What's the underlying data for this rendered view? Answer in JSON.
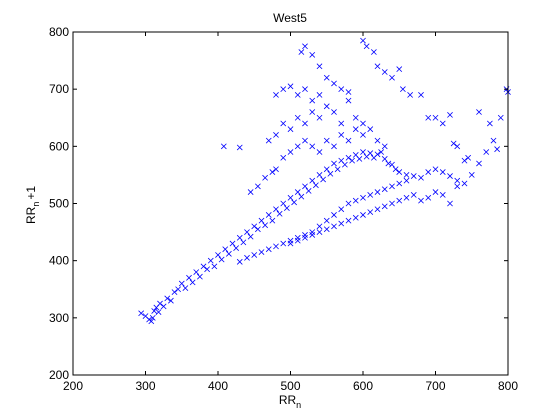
{
  "chart_data": {
    "type": "scatter",
    "title": "West5",
    "xlabel": {
      "main": "RR",
      "sub": "n",
      "suffix": ""
    },
    "ylabel": {
      "main": "RR",
      "sub": "n",
      "suffix": "+1"
    },
    "xlim": [
      200,
      800
    ],
    "ylim": [
      200,
      800
    ],
    "xticks": [
      200,
      300,
      400,
      500,
      600,
      700,
      800
    ],
    "yticks": [
      200,
      300,
      400,
      500,
      600,
      700,
      800
    ],
    "grid": false,
    "marker": "x",
    "marker_color": "#0000ff",
    "series": [
      {
        "values": [
          [
            294,
            308
          ],
          [
            300,
            303
          ],
          [
            305,
            297
          ],
          [
            308,
            294
          ],
          [
            310,
            300
          ],
          [
            312,
            312
          ],
          [
            315,
            318
          ],
          [
            318,
            310
          ],
          [
            320,
            325
          ],
          [
            325,
            320
          ],
          [
            330,
            334
          ],
          [
            335,
            330
          ],
          [
            340,
            345
          ],
          [
            345,
            350
          ],
          [
            350,
            360
          ],
          [
            355,
            352
          ],
          [
            360,
            370
          ],
          [
            365,
            362
          ],
          [
            370,
            380
          ],
          [
            375,
            372
          ],
          [
            380,
            390
          ],
          [
            385,
            385
          ],
          [
            390,
            400
          ],
          [
            395,
            390
          ],
          [
            400,
            410
          ],
          [
            405,
            402
          ],
          [
            410,
            420
          ],
          [
            415,
            412
          ],
          [
            420,
            430
          ],
          [
            425,
            422
          ],
          [
            430,
            440
          ],
          [
            435,
            432
          ],
          [
            440,
            450
          ],
          [
            445,
            442
          ],
          [
            450,
            460
          ],
          [
            455,
            455
          ],
          [
            460,
            470
          ],
          [
            465,
            462
          ],
          [
            470,
            480
          ],
          [
            475,
            470
          ],
          [
            480,
            490
          ],
          [
            485,
            482
          ],
          [
            490,
            500
          ],
          [
            495,
            492
          ],
          [
            500,
            510
          ],
          [
            505,
            502
          ],
          [
            510,
            520
          ],
          [
            515,
            512
          ],
          [
            520,
            530
          ],
          [
            525,
            522
          ],
          [
            530,
            540
          ],
          [
            535,
            532
          ],
          [
            540,
            550
          ],
          [
            545,
            542
          ],
          [
            550,
            560
          ],
          [
            555,
            552
          ],
          [
            560,
            570
          ],
          [
            565,
            560
          ],
          [
            570,
            575
          ],
          [
            575,
            568
          ],
          [
            580,
            580
          ],
          [
            585,
            575
          ],
          [
            590,
            585
          ],
          [
            595,
            578
          ],
          [
            600,
            590
          ],
          [
            605,
            582
          ],
          [
            610,
            588
          ],
          [
            615,
            580
          ],
          [
            620,
            586
          ],
          [
            625,
            590
          ],
          [
            630,
            578
          ],
          [
            635,
            570
          ],
          [
            640,
            568
          ],
          [
            645,
            560
          ],
          [
            650,
            555
          ],
          [
            660,
            550
          ],
          [
            670,
            548
          ],
          [
            680,
            545
          ],
          [
            690,
            555
          ],
          [
            700,
            560
          ],
          [
            710,
            555
          ],
          [
            720,
            548
          ],
          [
            730,
            540
          ],
          [
            740,
            535
          ],
          [
            430,
            398
          ],
          [
            440,
            405
          ],
          [
            450,
            410
          ],
          [
            460,
            415
          ],
          [
            470,
            420
          ],
          [
            480,
            425
          ],
          [
            490,
            430
          ],
          [
            500,
            435
          ],
          [
            510,
            440
          ],
          [
            520,
            445
          ],
          [
            530,
            450
          ],
          [
            540,
            460
          ],
          [
            550,
            470
          ],
          [
            560,
            480
          ],
          [
            570,
            490
          ],
          [
            580,
            500
          ],
          [
            590,
            505
          ],
          [
            600,
            510
          ],
          [
            610,
            515
          ],
          [
            620,
            520
          ],
          [
            630,
            525
          ],
          [
            640,
            530
          ],
          [
            650,
            535
          ],
          [
            660,
            540
          ],
          [
            480,
            560
          ],
          [
            490,
            580
          ],
          [
            500,
            590
          ],
          [
            510,
            600
          ],
          [
            520,
            610
          ],
          [
            530,
            600
          ],
          [
            540,
            590
          ],
          [
            550,
            610
          ],
          [
            560,
            600
          ],
          [
            570,
            620
          ],
          [
            580,
            610
          ],
          [
            590,
            630
          ],
          [
            600,
            620
          ],
          [
            610,
            630
          ],
          [
            620,
            610
          ],
          [
            630,
            600
          ],
          [
            470,
            610
          ],
          [
            480,
            620
          ],
          [
            490,
            640
          ],
          [
            500,
            630
          ],
          [
            510,
            650
          ],
          [
            520,
            640
          ],
          [
            530,
            660
          ],
          [
            540,
            650
          ],
          [
            550,
            670
          ],
          [
            560,
            660
          ],
          [
            570,
            640
          ],
          [
            580,
            680
          ],
          [
            590,
            650
          ],
          [
            600,
            640
          ],
          [
            480,
            690
          ],
          [
            490,
            700
          ],
          [
            500,
            705
          ],
          [
            510,
            690
          ],
          [
            520,
            700
          ],
          [
            530,
            680
          ],
          [
            540,
            690
          ],
          [
            515,
            765
          ],
          [
            520,
            775
          ],
          [
            530,
            760
          ],
          [
            540,
            740
          ],
          [
            550,
            720
          ],
          [
            560,
            710
          ],
          [
            570,
            700
          ],
          [
            580,
            695
          ],
          [
            600,
            785
          ],
          [
            605,
            775
          ],
          [
            615,
            765
          ],
          [
            620,
            740
          ],
          [
            630,
            730
          ],
          [
            640,
            720
          ],
          [
            650,
            735
          ],
          [
            655,
            700
          ],
          [
            665,
            690
          ],
          [
            680,
            690
          ],
          [
            690,
            650
          ],
          [
            700,
            650
          ],
          [
            710,
            640
          ],
          [
            720,
            655
          ],
          [
            725,
            605
          ],
          [
            730,
            600
          ],
          [
            740,
            575
          ],
          [
            745,
            580
          ],
          [
            750,
            550
          ],
          [
            760,
            570
          ],
          [
            770,
            590
          ],
          [
            780,
            610
          ],
          [
            785,
            595
          ],
          [
            790,
            650
          ],
          [
            760,
            660
          ],
          [
            775,
            640
          ],
          [
            800,
            695
          ],
          [
            798,
            700
          ],
          [
            408,
            600
          ],
          [
            430,
            598
          ],
          [
            445,
            520
          ],
          [
            455,
            530
          ],
          [
            465,
            545
          ],
          [
            475,
            555
          ],
          [
            500,
            430
          ],
          [
            510,
            435
          ],
          [
            520,
            440
          ],
          [
            530,
            445
          ],
          [
            540,
            450
          ],
          [
            550,
            455
          ],
          [
            560,
            460
          ],
          [
            570,
            465
          ],
          [
            580,
            470
          ],
          [
            590,
            475
          ],
          [
            600,
            480
          ],
          [
            610,
            485
          ],
          [
            620,
            490
          ],
          [
            630,
            495
          ],
          [
            640,
            500
          ],
          [
            650,
            505
          ],
          [
            660,
            510
          ],
          [
            670,
            515
          ],
          [
            680,
            505
          ],
          [
            690,
            510
          ],
          [
            700,
            520
          ],
          [
            710,
            515
          ],
          [
            720,
            500
          ],
          [
            730,
            530
          ]
        ]
      }
    ]
  }
}
